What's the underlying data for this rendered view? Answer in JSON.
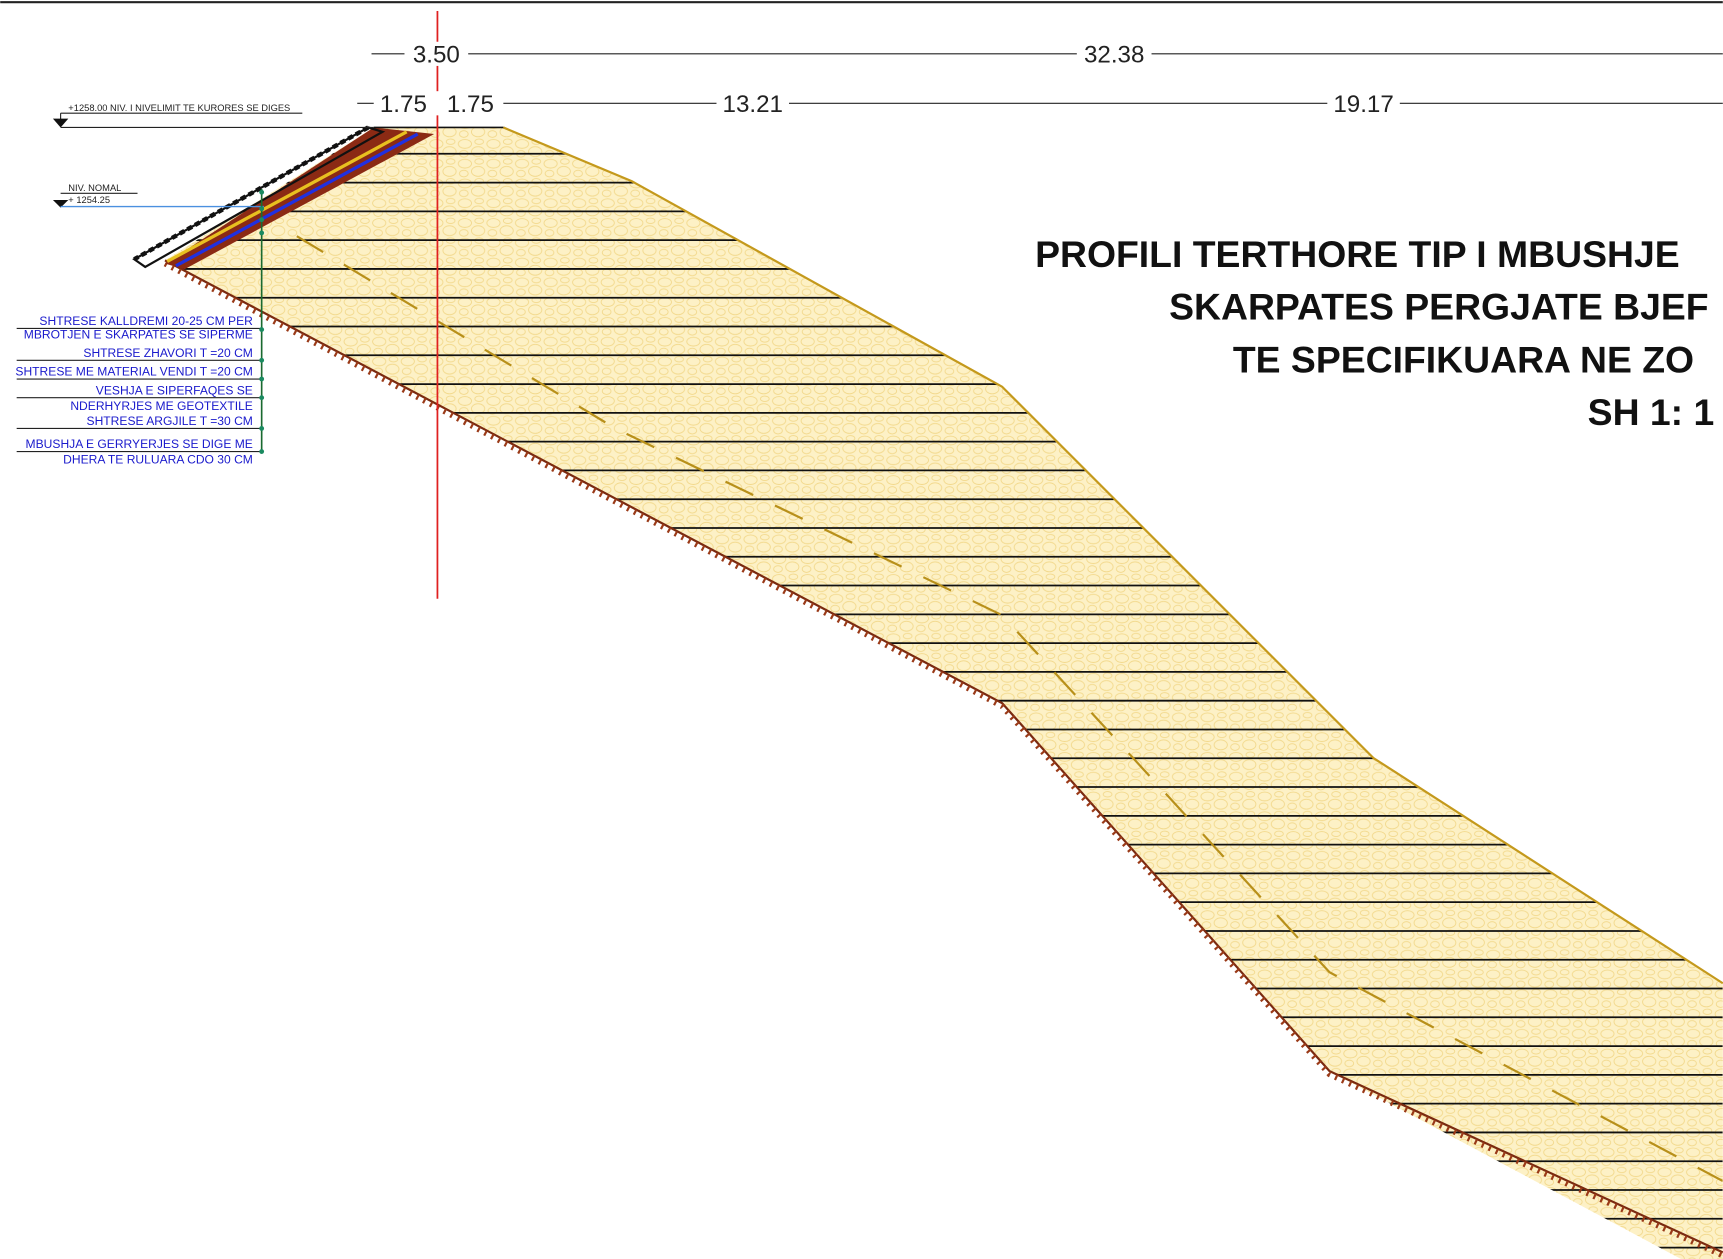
{
  "dimensions": {
    "top": [
      "3.50",
      "32.38"
    ],
    "second": [
      "1.75",
      "1.75",
      "13.21",
      "19.17"
    ]
  },
  "levels": {
    "crest": "+1258.00 NIV. I NIVELIMIT TE KURORES SE DIGES",
    "normal_title": "NIV. NOMAL",
    "normal_value": "+ 1254.25"
  },
  "layers": [
    "SHTRESE KALLDREMI 20-25 CM PER",
    "MBROTJEN  E SKARPATES SE SIPERME",
    "SHTRESE ZHAVORI T =20 CM",
    "SHTRESE ME MATERIAL VENDI T =20 CM",
    "VESHJA E SIPERFAQES SE",
    "NDERHYRJES ME  GEOTEXTILE",
    "SHTRESE ARGJILE  T =30 CM",
    "MBUSHJA E GERRYERJES SE DIGE  ME",
    "DHERA TE RULUARA CDO 30 CM"
  ],
  "title": [
    "PROFILI TERTHORE TIP I MBUSHJE",
    "SKARPATES PERGJATE BJEF",
    "TE SPECIFIKUARA NE ZO",
    "SH 1: 1"
  ]
}
